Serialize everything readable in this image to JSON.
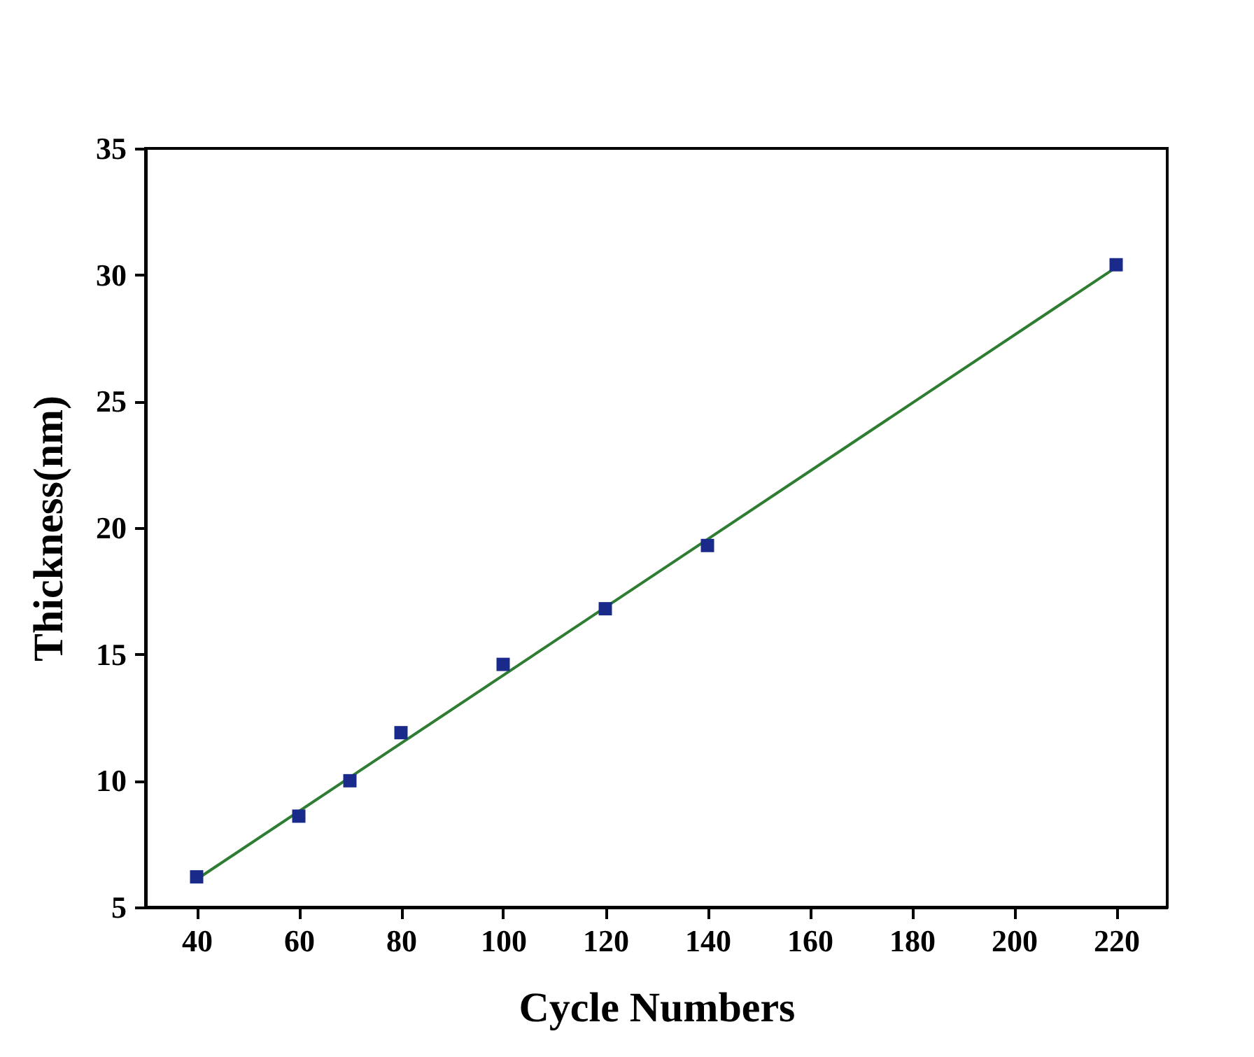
{
  "chart_data": {
    "type": "scatter",
    "xlabel": "Cycle Numbers",
    "ylabel": "Thickness(nm)",
    "xlim": [
      30,
      230
    ],
    "ylim": [
      5,
      35
    ],
    "xticks": [
      40,
      60,
      80,
      100,
      120,
      140,
      160,
      180,
      200,
      220
    ],
    "yticks": [
      5,
      10,
      15,
      20,
      25,
      30,
      35
    ],
    "marker": "square",
    "grid": false,
    "series": [
      {
        "color": "#1a2a8a",
        "x": [
          40,
          60,
          70,
          80,
          100,
          120,
          140,
          220
        ],
        "values": [
          6.2,
          8.6,
          10.0,
          11.9,
          14.6,
          16.8,
          19.3,
          30.4
        ]
      },
      {
        "type": "line",
        "color": "#2e7d32",
        "x": [
          40,
          220
        ],
        "values": [
          6.1,
          30.3
        ],
        "line_style": "solid",
        "marker": "none"
      }
    ]
  }
}
